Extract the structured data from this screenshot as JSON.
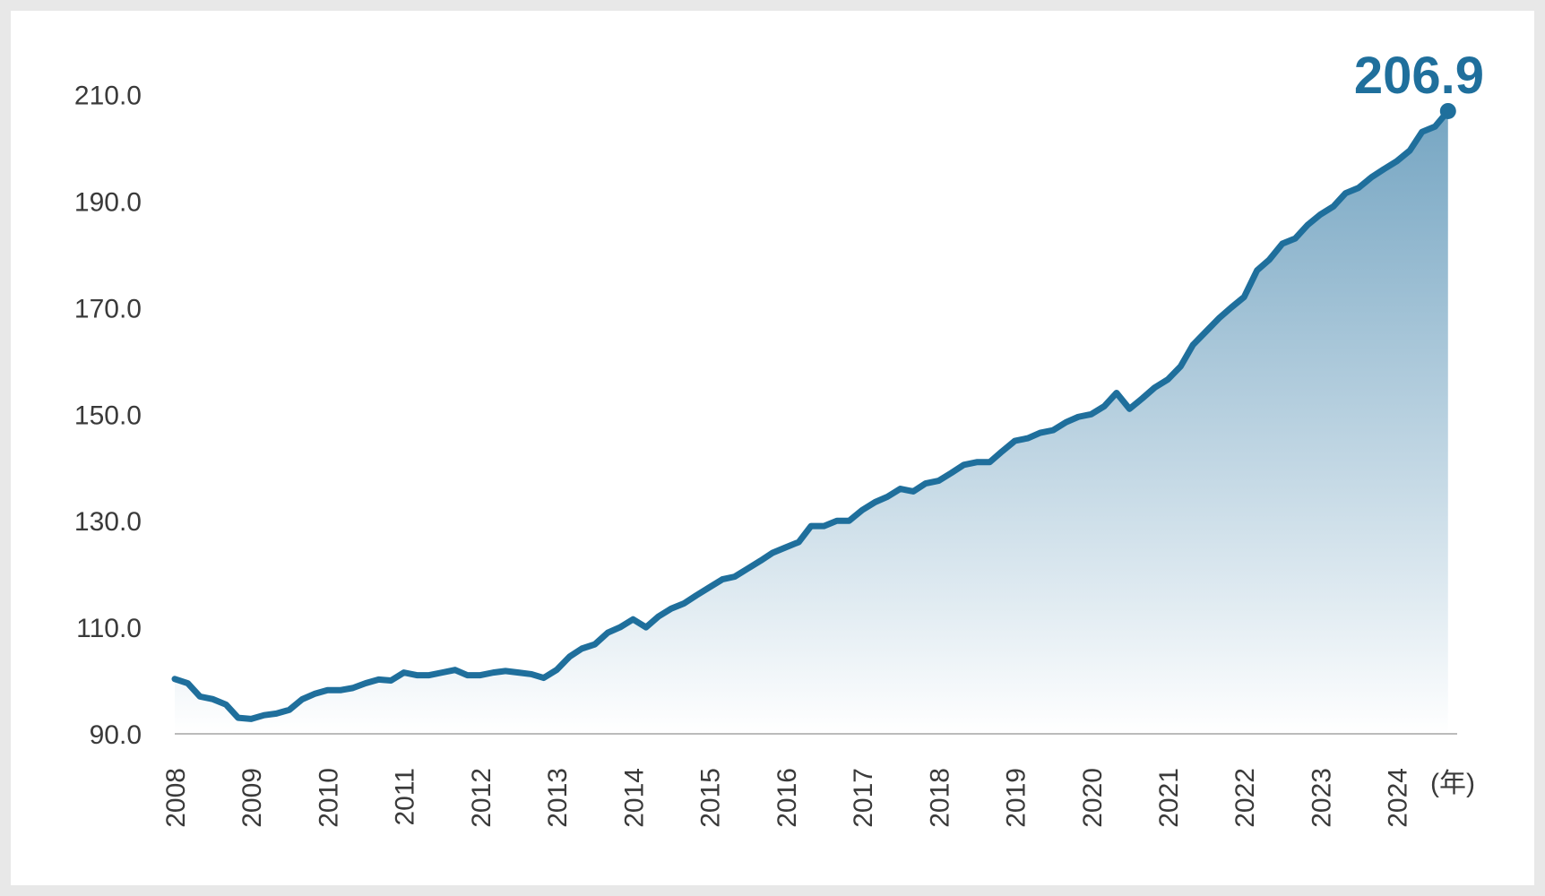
{
  "chart_data": {
    "type": "area",
    "x": [
      2008,
      2008.17,
      2008.33,
      2008.5,
      2008.67,
      2008.83,
      2009,
      2009.17,
      2009.33,
      2009.5,
      2009.67,
      2009.83,
      2010,
      2010.17,
      2010.33,
      2010.5,
      2010.67,
      2010.83,
      2011,
      2011.17,
      2011.33,
      2011.5,
      2011.67,
      2011.83,
      2012,
      2012.17,
      2012.33,
      2012.5,
      2012.67,
      2012.83,
      2013,
      2013.17,
      2013.33,
      2013.5,
      2013.67,
      2013.83,
      2014,
      2014.17,
      2014.33,
      2014.5,
      2014.67,
      2014.83,
      2015,
      2015.17,
      2015.33,
      2015.5,
      2015.67,
      2015.83,
      2016,
      2016.17,
      2016.33,
      2016.5,
      2016.67,
      2016.83,
      2017,
      2017.17,
      2017.33,
      2017.5,
      2017.67,
      2017.83,
      2018,
      2018.17,
      2018.33,
      2018.5,
      2018.67,
      2018.83,
      2019,
      2019.17,
      2019.33,
      2019.5,
      2019.67,
      2019.83,
      2020,
      2020.17,
      2020.33,
      2020.5,
      2020.67,
      2020.83,
      2021,
      2021.17,
      2021.33,
      2021.5,
      2021.67,
      2021.83,
      2022,
      2022.17,
      2022.33,
      2022.5,
      2022.67,
      2022.83,
      2023,
      2023.17,
      2023.33,
      2023.5,
      2023.67,
      2023.83,
      2024,
      2024.17,
      2024.33,
      2024.5,
      2024.67
    ],
    "values": [
      100.3,
      99.5,
      97,
      96.5,
      95.5,
      93,
      92.8,
      93.5,
      93.8,
      94.5,
      96.5,
      97.5,
      98.2,
      98.2,
      98.6,
      99.5,
      100.2,
      100,
      101.5,
      101,
      101,
      101.5,
      102,
      101,
      101,
      101.5,
      101.8,
      101.5,
      101.2,
      100.5,
      102,
      104.5,
      106,
      106.8,
      109,
      110,
      111.5,
      110,
      112,
      113.5,
      114.5,
      116,
      117.5,
      119,
      119.5,
      121,
      122.5,
      124,
      125,
      126,
      129,
      129,
      130,
      130,
      132,
      133.5,
      134.5,
      136,
      135.5,
      137,
      137.5,
      139,
      140.5,
      141,
      141,
      143,
      145,
      145.5,
      146.5,
      147,
      148.5,
      149.5,
      150,
      151.5,
      154,
      151,
      153,
      155,
      156.5,
      159,
      163,
      165.5,
      168,
      170,
      172,
      177,
      179,
      182,
      183,
      185.5,
      187.5,
      189,
      191.5,
      192.5,
      194.5,
      196,
      197.5,
      199.5,
      203,
      204,
      206.9
    ],
    "color": "#1f6f9c",
    "last_value_label": "206.9",
    "x_unit_label": "(年)",
    "xlim": [
      2008,
      2024.79
    ],
    "xticks": [
      2008,
      2009,
      2010,
      2011,
      2012,
      2013,
      2014,
      2015,
      2016,
      2017,
      2018,
      2019,
      2020,
      2021,
      2022,
      2023,
      2024
    ],
    "ylim": [
      90,
      218
    ],
    "yticks": [
      {
        "value": 90,
        "label": "90.0"
      },
      {
        "value": 110,
        "label": "110.0"
      },
      {
        "value": 130,
        "label": "130.0"
      },
      {
        "value": 150,
        "label": "150.0"
      },
      {
        "value": 170,
        "label": "170.0"
      },
      {
        "value": 190,
        "label": "190.0"
      },
      {
        "value": 210,
        "label": "210.0"
      }
    ],
    "grid": false
  }
}
